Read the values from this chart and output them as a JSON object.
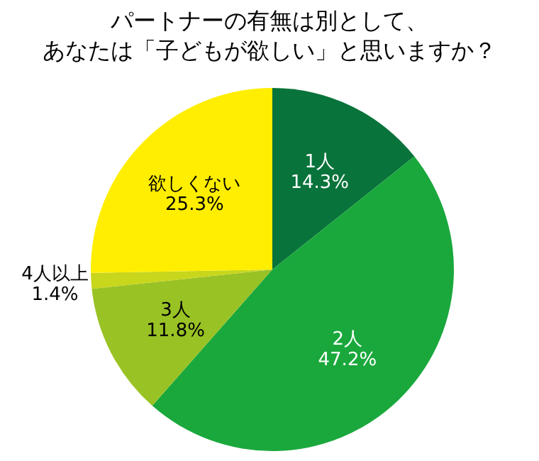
{
  "chart_data": {
    "type": "pie",
    "title": "パートナーの有無は別として、",
    "subtitle": "あなたは「子どもが欲しい」と思いますか？",
    "categories": [
      "1人",
      "2人",
      "3人",
      "4人以上",
      "欲しくない"
    ],
    "values": [
      14.3,
      47.2,
      11.8,
      1.4,
      25.3
    ],
    "value_labels": [
      "14.3%",
      "47.2%",
      "11.8%",
      "1.4%",
      "25.3%"
    ],
    "colors": [
      "#08733a",
      "#1aa83c",
      "#99c224",
      "#c8d61c",
      "#ffee00"
    ]
  }
}
